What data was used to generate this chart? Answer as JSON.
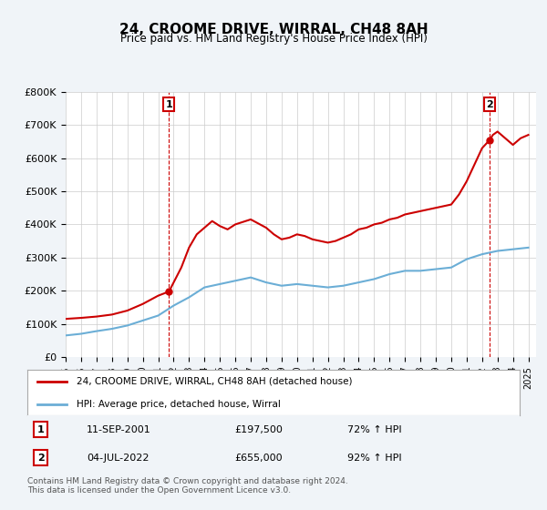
{
  "title": "24, CROOME DRIVE, WIRRAL, CH48 8AH",
  "subtitle": "Price paid vs. HM Land Registry's House Price Index (HPI)",
  "ylim": [
    0,
    800000
  ],
  "yticks": [
    0,
    100000,
    200000,
    300000,
    400000,
    500000,
    600000,
    700000,
    800000
  ],
  "xlim_start": 1995.0,
  "xlim_end": 2025.5,
  "sale1_date": 2001.7,
  "sale1_price": 197500,
  "sale1_label": "1",
  "sale2_date": 2022.5,
  "sale2_price": 655000,
  "sale2_label": "2",
  "legend_line1": "24, CROOME DRIVE, WIRRAL, CH48 8AH (detached house)",
  "legend_line2": "HPI: Average price, detached house, Wirral",
  "table_row1": [
    "1",
    "11-SEP-2001",
    "£197,500",
    "72% ↑ HPI"
  ],
  "table_row2": [
    "2",
    "04-JUL-2022",
    "£655,000",
    "92% ↑ HPI"
  ],
  "footer": "Contains HM Land Registry data © Crown copyright and database right 2024.\nThis data is licensed under the Open Government Licence v3.0.",
  "hpi_color": "#6baed6",
  "price_color": "#cc0000",
  "background_color": "#f0f4f8",
  "plot_bg_color": "#ffffff",
  "grid_color": "#cccccc"
}
